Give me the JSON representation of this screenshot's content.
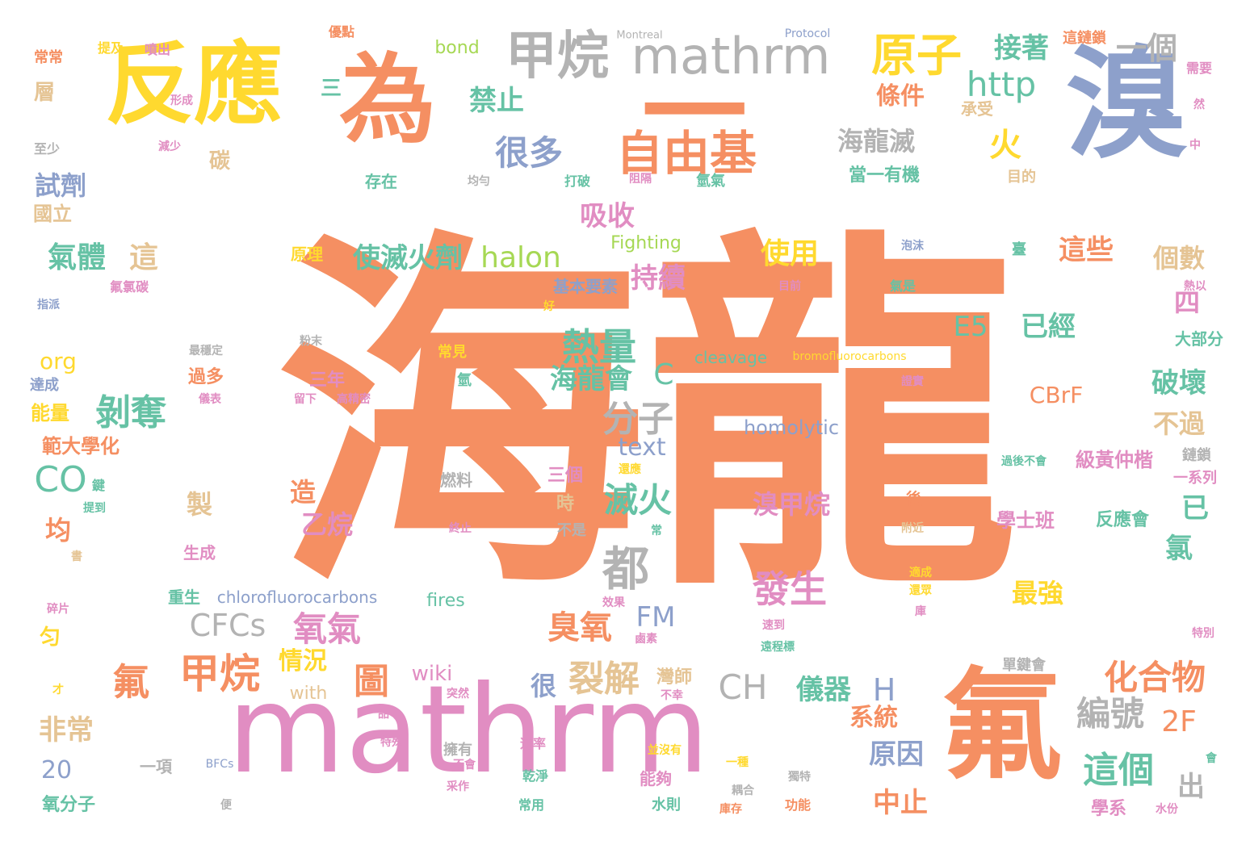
{
  "cloud": {
    "palette": {
      "orange": "#f58f62",
      "pink": "#e18dc2",
      "yellow": "#ffd92f",
      "blue": "#8da0cb",
      "green": "#66c2a5",
      "lime": "#a6d854",
      "tan": "#e5c494",
      "gray": "#b3b3b3"
    },
    "words": [
      "海龍",
      "mathrm",
      "溴",
      "氟",
      "反應",
      "為",
      "一",
      "甲烷",
      "mathrm",
      "原子",
      "自由基",
      "接著",
      "一個",
      "http",
      "火",
      "海龍滅",
      "很多",
      "禁止",
      "條件",
      "三",
      "承受",
      "碳",
      "試劑",
      "氣體",
      "這",
      "使滅火劑",
      "halon",
      "吸收",
      "使用",
      "這些",
      "個數",
      "持續",
      "二",
      "四",
      "熱量",
      "C",
      "E5",
      "已經",
      "海龍會",
      "剝奪",
      "分子",
      "破壞",
      "CBrF",
      "不過",
      "CO",
      "text",
      "homolytic",
      "滅火",
      "溴甲烷",
      "已",
      "造",
      "乙烷",
      "級黃仲楷",
      "製",
      "均",
      "都",
      "發生",
      "氯",
      "學士班",
      "反應會",
      "CFCs",
      "氧氣",
      "FM",
      "最強",
      "臭氧",
      "氟",
      "甲烷",
      "情況",
      "圖",
      "裂解",
      "CH",
      "儀器",
      "H",
      "化合物",
      "編號",
      "2F",
      "系統",
      "這個",
      "原因",
      "中止",
      "出",
      "非常",
      "wiki",
      "很",
      "with",
      "20",
      "氧分子",
      "org",
      "能量",
      "範大學化",
      "國立",
      "bond",
      "Montreal",
      "Protocol",
      "這鏈鎖",
      "常常",
      "提及",
      "噴出",
      "優點",
      "需要",
      "層",
      "形成",
      "至少",
      "減少",
      "存在",
      "均勻",
      "打破",
      "阻隔",
      "氫氣",
      "目的",
      "當一有機",
      "Fighting",
      "原理",
      "基本要素",
      "泡沫",
      "臺",
      "熱以",
      "氣是",
      "目前",
      "氟氯碳",
      "指派",
      "鍵",
      "好",
      "大部分",
      "粉末",
      "最穩定",
      "常見",
      "cleavage",
      "bromofluorocarbons",
      "達成",
      "過多",
      "儀表",
      "三年",
      "留下",
      "高精密",
      "氫",
      "證實",
      "過後不會",
      "鏈鎖",
      "還應",
      "一系列",
      "燃料",
      "三個",
      "提到",
      "時",
      "終止",
      "後",
      "不是",
      "常",
      "附近",
      "生成",
      "重生",
      "chlorofluorocarbons",
      "fires",
      "效果",
      "速到",
      "適成",
      "還眾",
      "庫",
      "碎片",
      "匀",
      "鹵素",
      "遠程標",
      "不幸",
      "才",
      "品",
      "突然",
      "灣師",
      "單鍵會",
      "學系",
      "水份",
      "特別",
      "特殊",
      "擁有",
      "速率",
      "並沒有",
      "一項",
      "BFCs",
      "不會",
      "乾淨",
      "能夠",
      "一種",
      "耦合",
      "獨特",
      "采作",
      "常用",
      "水則",
      "庫存",
      "功能",
      "便",
      "會",
      "然",
      "中",
      "書"
    ]
  }
}
